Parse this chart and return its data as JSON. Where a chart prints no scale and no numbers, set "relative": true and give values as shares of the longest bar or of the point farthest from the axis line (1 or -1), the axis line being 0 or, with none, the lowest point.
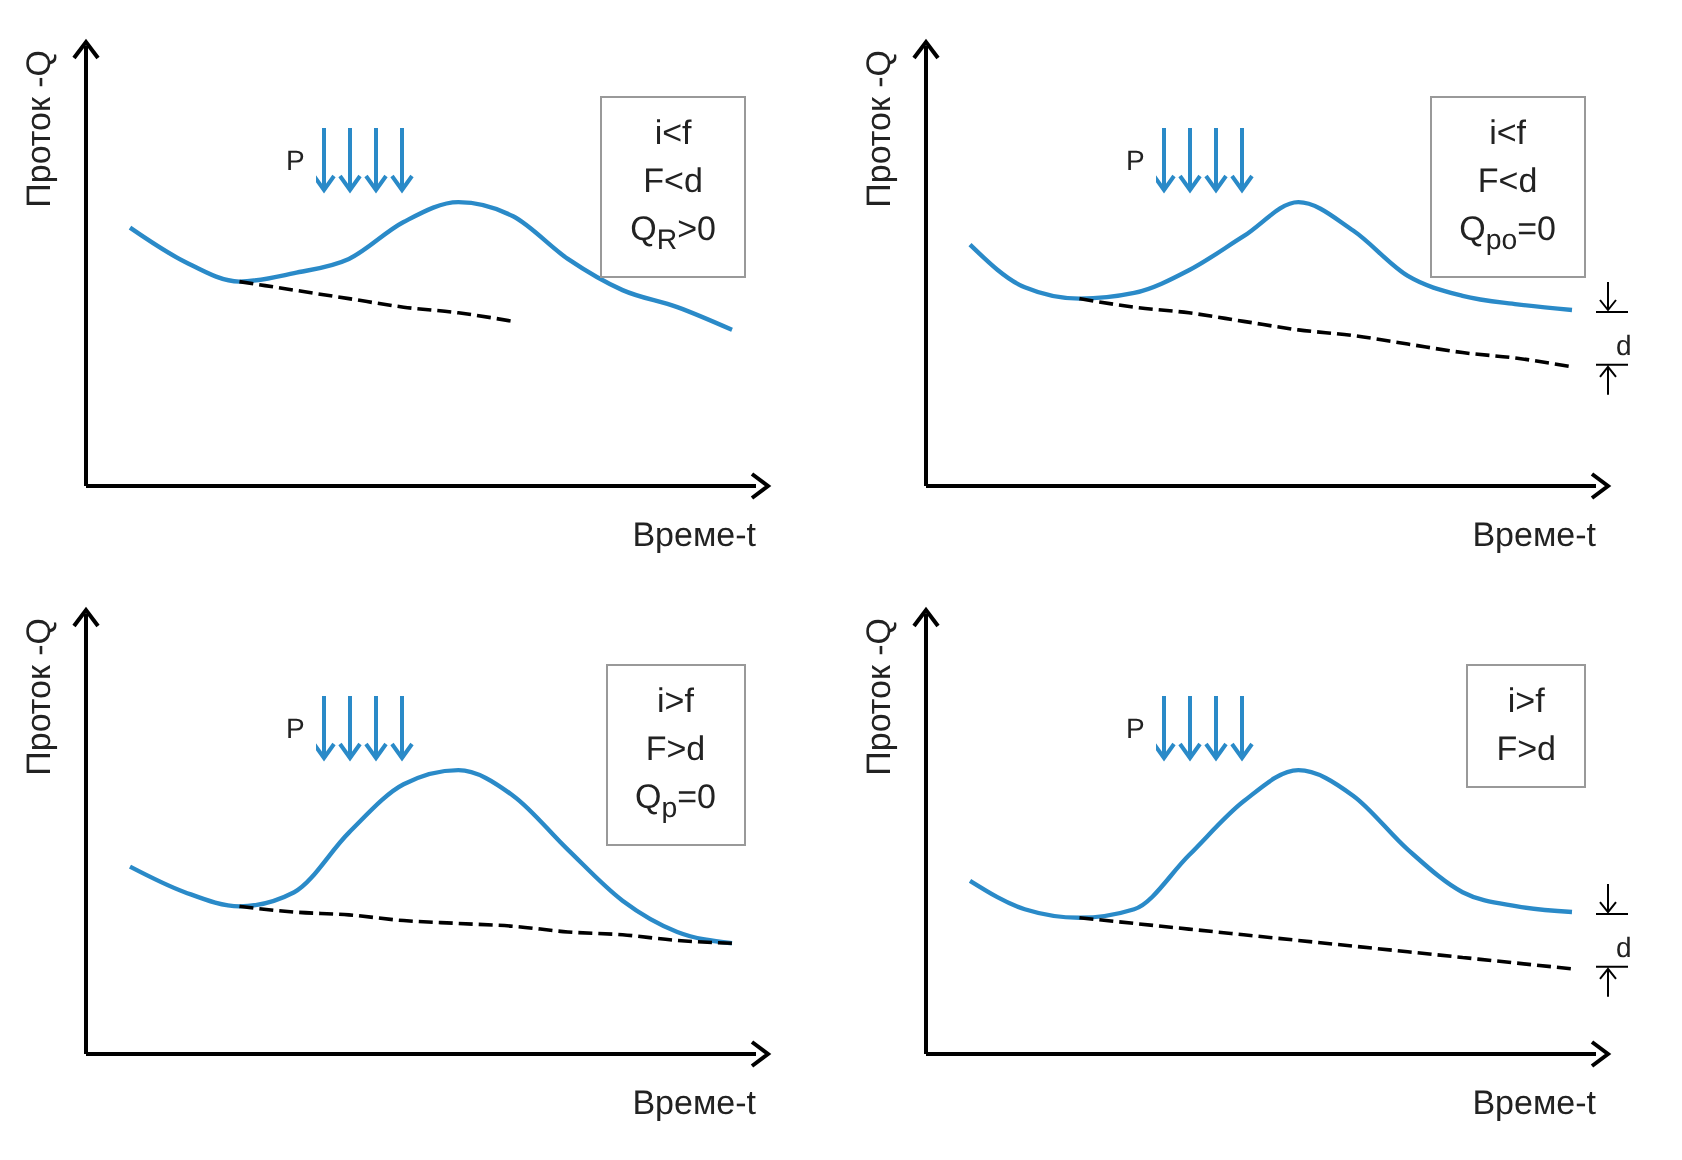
{
  "chart_data": [
    {
      "type": "line",
      "relative": true,
      "xlabel": "Време-t",
      "ylabel": "Проток -Q",
      "marker": "none",
      "categories": [
        null,
        null,
        null,
        null,
        null,
        null,
        null,
        null,
        null,
        null,
        null,
        null
      ],
      "series": [
        {
          "color": "#2a8ac8",
          "line_style": "solid",
          "values": [
            0.91,
            0.79,
            0.72,
            0.75,
            0.8,
            0.93,
            1,
            0.95,
            0.8,
            0.69,
            0.63,
            0.55
          ]
        },
        {
          "color": "#000000",
          "line_style": "dashed",
          "values": [
            null,
            null,
            0.72,
            0.69,
            0.66,
            0.63,
            0.61,
            0.58,
            null,
            null,
            null,
            null
          ]
        }
      ],
      "annotations": [
        "P",
        "i<f\nF<d\nQ$_{R}$>0"
      ]
    },
    {
      "type": "line",
      "relative": true,
      "xlabel": "Време-t",
      "ylabel": "Проток -Q",
      "marker": "none",
      "categories": [
        null,
        null,
        null,
        null,
        null,
        null,
        null,
        null,
        null,
        null,
        null,
        null
      ],
      "series": [
        {
          "color": "#2a8ac8",
          "line_style": "solid",
          "values": [
            0.85,
            0.7,
            0.66,
            0.68,
            0.76,
            0.88,
            1,
            0.9,
            0.74,
            0.67,
            0.64,
            0.62
          ]
        },
        {
          "color": "#000000",
          "line_style": "dashed",
          "values": [
            null,
            null,
            0.66,
            0.63,
            0.61,
            0.58,
            0.55,
            0.53,
            0.5,
            0.47,
            0.45,
            0.42
          ]
        }
      ],
      "annotations": [
        "P",
        "i<f\nF<d\nQ$_{ро}$=0",
        "d"
      ]
    },
    {
      "type": "line",
      "relative": true,
      "xlabel": "Време-t",
      "ylabel": "Проток -Q",
      "marker": "none",
      "categories": [
        null,
        null,
        null,
        null,
        null,
        null,
        null,
        null,
        null,
        null,
        null,
        null
      ],
      "series": [
        {
          "color": "#2a8ac8",
          "line_style": "solid",
          "values": [
            0.66,
            0.57,
            0.52,
            0.57,
            0.78,
            0.95,
            1,
            0.91,
            0.72,
            0.54,
            0.43,
            0.39
          ]
        },
        {
          "color": "#000000",
          "line_style": "dashed",
          "values": [
            null,
            null,
            0.52,
            0.5,
            0.49,
            0.47,
            0.46,
            0.45,
            0.43,
            0.42,
            0.4,
            0.39
          ]
        }
      ],
      "annotations": [
        "P",
        "i>f\nF>d\nQ$_{р}$=0"
      ]
    },
    {
      "type": "line",
      "relative": true,
      "xlabel": "Време-t",
      "ylabel": "Проток -Q",
      "marker": "none",
      "categories": [
        null,
        null,
        null,
        null,
        null,
        null,
        null,
        null,
        null,
        null,
        null,
        null
      ],
      "series": [
        {
          "color": "#2a8ac8",
          "line_style": "solid",
          "values": [
            0.61,
            0.51,
            0.48,
            0.51,
            0.7,
            0.89,
            1,
            0.91,
            0.72,
            0.57,
            0.52,
            0.5
          ]
        },
        {
          "color": "#000000",
          "line_style": "dashed",
          "values": [
            null,
            null,
            0.48,
            0.46,
            0.44,
            0.42,
            0.4,
            0.38,
            0.36,
            0.34,
            0.32,
            0.3
          ]
        }
      ],
      "annotations": [
        "P",
        "i>f\nF>d",
        "d"
      ]
    }
  ]
}
